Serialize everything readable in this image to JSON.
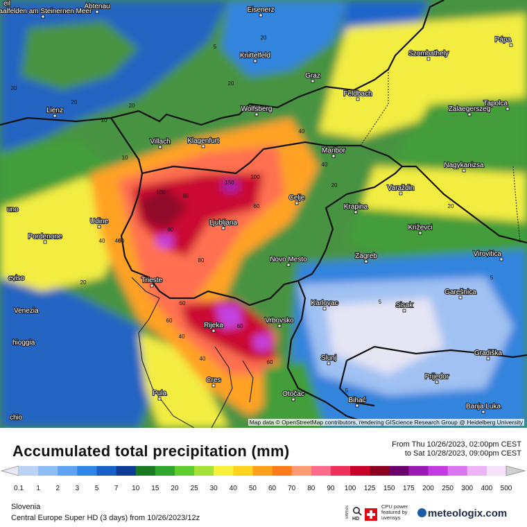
{
  "map": {
    "cities": [
      {
        "name": "Abtenau"
      },
      {
        "name": "Saalfelden am Steinernen Meer"
      },
      {
        "name": "Eisenerz"
      },
      {
        "name": "Knittelfeld"
      },
      {
        "name": "Graz"
      },
      {
        "name": "Szombathely"
      },
      {
        "name": "Pápa"
      },
      {
        "name": "Lienz"
      },
      {
        "name": "Wolfsberg"
      },
      {
        "name": "Feldbach"
      },
      {
        "name": "Zalaegerszeg"
      },
      {
        "name": "Tapolca"
      },
      {
        "name": "Villach"
      },
      {
        "name": "Klagenfurt"
      },
      {
        "name": "Maribor"
      },
      {
        "name": "Nagykanizsa"
      },
      {
        "name": "Varaždin"
      },
      {
        "name": "Celje"
      },
      {
        "name": "Krapina"
      },
      {
        "name": "Udine"
      },
      {
        "name": "Ljubljana"
      },
      {
        "name": "Križevci"
      },
      {
        "name": "Pordenone"
      },
      {
        "name": "Novo Mesto"
      },
      {
        "name": "Zagreb"
      },
      {
        "name": "Virovitica"
      },
      {
        "name": "Trieste"
      },
      {
        "name": "Karlovac"
      },
      {
        "name": "Sisak"
      },
      {
        "name": "Garešnica"
      },
      {
        "name": "Rijeka"
      },
      {
        "name": "Vrbovsko"
      },
      {
        "name": "Gradiška"
      },
      {
        "name": "Slunj"
      },
      {
        "name": "Prijedor"
      },
      {
        "name": "Cres"
      },
      {
        "name": "Pula"
      },
      {
        "name": "Otočac"
      },
      {
        "name": "Bihać"
      },
      {
        "name": "Banja Luka"
      },
      {
        "name": "eviso"
      },
      {
        "name": "Venezia"
      },
      {
        "name": "hioggia"
      },
      {
        "name": "chio"
      },
      {
        "name": "uno"
      },
      {
        "name": "eil"
      }
    ],
    "contour_labels": [
      "5",
      "10",
      "20",
      "40",
      "60",
      "80",
      "100",
      "150"
    ],
    "attribution": "Map data © OpenStreetMap contributors, rendering GIScience Research Group @ Heidelberg University"
  },
  "title": "Accumulated total precipitation (mm)",
  "period": {
    "line1": "From Thu 10/26/2023, 02:00pm CEST",
    "line2": "to Sat 10/28/2023, 09:00pm CEST"
  },
  "legend": {
    "values": [
      "0.1",
      "1",
      "2",
      "3",
      "5",
      "7",
      "10",
      "15",
      "20",
      "25",
      "30",
      "40",
      "50",
      "60",
      "70",
      "80",
      "90",
      "100",
      "125",
      "150",
      "175",
      "200",
      "250",
      "300",
      "400",
      "500"
    ],
    "colors": [
      "#e8e8f6",
      "#b9d2f5",
      "#8ebcf5",
      "#5ea4f2",
      "#2f86e8",
      "#1860c8",
      "#0e3d96",
      "#1a7a23",
      "#2ea52b",
      "#5fcd2d",
      "#a4e23a",
      "#f6f03a",
      "#ffd21e",
      "#ff9f1c",
      "#ff7b1a",
      "#ff9b74",
      "#ff6b8a",
      "#f0305c",
      "#c8002a",
      "#8c0020",
      "#6a006a",
      "#9a1ab4",
      "#c23ae0",
      "#d975f0",
      "#ecb4f7",
      "#f6e2fb",
      "#cfcfcf"
    ]
  },
  "region": "Slovenia",
  "model": "Central Europe Super HD (3 days)  from  10/26/2023/12z",
  "branding": {
    "swiss": "SWISS",
    "hd": "HD",
    "cpu": "CPU power featured by uvensys",
    "logo": "meteologix.com"
  }
}
